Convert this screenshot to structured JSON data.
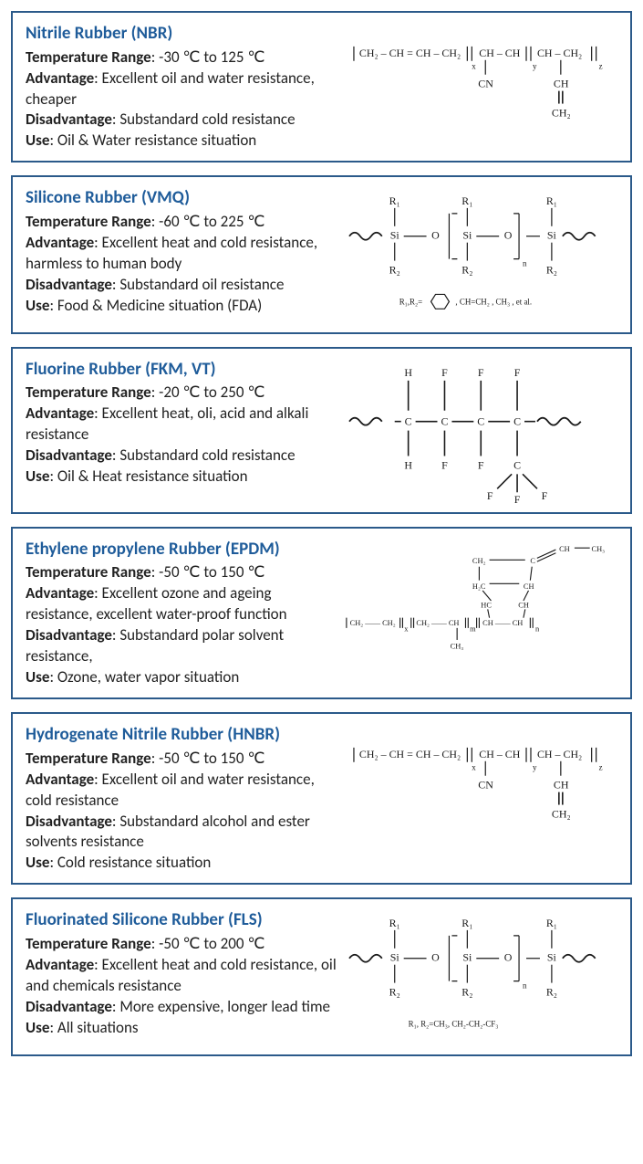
{
  "colors": {
    "border": "#2b5a8a",
    "title": "#1f5c9a",
    "text": "#222222",
    "diagram_stroke": "#1a1a1a",
    "background": "#ffffff"
  },
  "label_names": {
    "temp": "Temperature Range",
    "adv": "Advantage",
    "dis": "Disadvantage",
    "use": "Use"
  },
  "cards": [
    {
      "title": "Nitrile Rubber (NBR)",
      "temp": "-30 ℃ to 125 ℃",
      "adv": "Excellent oil and water resistance, cheaper",
      "dis": "Substandard cold resistance",
      "use": "Oil & Water resistance situation",
      "diagram": "nbr"
    },
    {
      "title": "Silicone Rubber (VMQ)",
      "temp": "-60 ℃ to 225 ℃",
      "adv": "Excellent heat and cold resistance, harmless to human body",
      "dis": "Substandard oil  resistance",
      "use": "Food & Medicine  situation (FDA)",
      "diagram": "vmq"
    },
    {
      "title": "Fluorine Rubber (FKM, VT)",
      "temp": "-20 ℃ to 250 ℃",
      "adv": "Excellent heat, oli, acid and alkali resistance",
      "dis": "Substandard cold resistance",
      "use": "Oil & Heat resistance situation",
      "diagram": "fkm"
    },
    {
      "title": "Ethylene  propylene  Rubber (EPDM)",
      "temp": "-50 ℃ to 150 ℃",
      "adv": "Excellent ozone and ageing resistance, excellent water-proof function",
      "dis": "Substandard polar solvent resistance,",
      "use": "Ozone, water vapor situation",
      "diagram": "epdm"
    },
    {
      "title": "Hydrogenate  Nitrile Rubber (HNBR)",
      "temp": "-50 ℃ to 150 ℃",
      "adv": "Excellent oil and water resistance, cold resistance",
      "dis": "Substandard alcohol and ester solvents resistance",
      "use": "Cold resistance situation",
      "diagram": "nbr"
    },
    {
      "title": "Fluorinated  Silicone  Rubber (FLS)",
      "temp": "-50 ℃ to 200 ℃",
      "adv": "Excellent heat and cold resistance, oil and chemicals resistance",
      "dis": "More expensive, longer lead time",
      "use": "All situations",
      "diagram": "fls"
    }
  ],
  "diagram_labels": {
    "nbr": {
      "backbone": "CH₂ – CH = CH  – CH₂",
      "rep1": "CH – CH",
      "rep2": "CH – CH₂",
      "sub_x": "x",
      "sub_y": "y",
      "sub_z": "z",
      "cn": "CN",
      "ch": "CH",
      "ch2": "CH₂"
    },
    "vmq": {
      "r1": "R₁",
      "r2": "R₂",
      "si": "Si",
      "o": "O",
      "n": "n",
      "note": "R₁,R₂=       ,  CH=CH₂ ,  CH₃ , et al."
    },
    "fkm": {
      "h": "H",
      "f": "F",
      "c": "C"
    },
    "epdm": {
      "ch2": "CH₂",
      "ch": "CH",
      "ch3": "CH₃",
      "hc": "HC",
      "h2c": "H₂C",
      "c": "C",
      "x": "x",
      "m": "m",
      "n": "n"
    },
    "fls": {
      "r1": "R₁",
      "r2": "R₂",
      "si": "Si",
      "o": "O",
      "n": "n",
      "note": "R₁,  R₂=CH₃,  CH₂-CH₂-CF₃"
    }
  }
}
